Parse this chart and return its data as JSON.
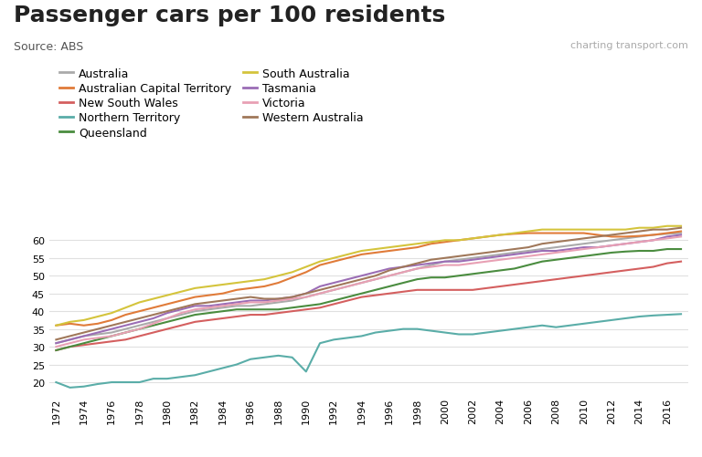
{
  "title": "Passenger cars per 100 residents",
  "source": "Source: ABS",
  "watermark": "charting transport.com",
  "years": [
    1972,
    1973,
    1974,
    1975,
    1976,
    1977,
    1978,
    1979,
    1980,
    1981,
    1982,
    1983,
    1984,
    1985,
    1986,
    1987,
    1988,
    1989,
    1990,
    1991,
    1992,
    1993,
    1994,
    1995,
    1996,
    1997,
    1998,
    1999,
    2000,
    2001,
    2002,
    2003,
    2004,
    2005,
    2006,
    2007,
    2008,
    2009,
    2010,
    2011,
    2012,
    2013,
    2014,
    2015,
    2016,
    2017
  ],
  "series": {
    "Australia": {
      "color": "#aaaaaa",
      "data": [
        31,
        32,
        33,
        33.5,
        34,
        35,
        36,
        37,
        38,
        39,
        40,
        40.5,
        41,
        41.5,
        41.5,
        42,
        42.5,
        43,
        44,
        45,
        46,
        47,
        48,
        49,
        50,
        51,
        52,
        53,
        54,
        54.5,
        55,
        55.5,
        56,
        56.5,
        57,
        57.5,
        58,
        58.5,
        59,
        59.5,
        60,
        60.5,
        61,
        61.5,
        61.8,
        62
      ]
    },
    "Australian Capital Territory": {
      "color": "#e07b39",
      "data": [
        36,
        36.5,
        36,
        36.5,
        37.5,
        39,
        40,
        41,
        42,
        43,
        44,
        44.5,
        45,
        46,
        46.5,
        47,
        48,
        49.5,
        51,
        53,
        54,
        55,
        56,
        56.5,
        57,
        57.5,
        58,
        59,
        59.5,
        60,
        60.5,
        61,
        61.5,
        61.8,
        62,
        62,
        62,
        62,
        62,
        61.5,
        61,
        61,
        61.2,
        61.5,
        62,
        62.5
      ]
    },
    "New South Wales": {
      "color": "#d45f5f",
      "data": [
        29,
        30,
        30.5,
        31,
        31.5,
        32,
        33,
        34,
        35,
        36,
        37,
        37.5,
        38,
        38.5,
        39,
        39,
        39.5,
        40,
        40.5,
        41,
        42,
        43,
        44,
        44.5,
        45,
        45.5,
        46,
        46,
        46,
        46,
        46,
        46.5,
        47,
        47.5,
        48,
        48.5,
        49,
        49.5,
        50,
        50.5,
        51,
        51.5,
        52,
        52.5,
        53.5,
        54
      ]
    },
    "Northern Territory": {
      "color": "#5aada8",
      "data": [
        20,
        18.5,
        18.8,
        19.5,
        20,
        20,
        20,
        21,
        21,
        21.5,
        22,
        23,
        24,
        25,
        26.5,
        27,
        27.5,
        27,
        23,
        31,
        32,
        32.5,
        33,
        34,
        34.5,
        35,
        35,
        34.5,
        34,
        33.5,
        33.5,
        34,
        34.5,
        35,
        35.5,
        36,
        35.5,
        36,
        36.5,
        37,
        37.5,
        38,
        38.5,
        38.8,
        39,
        39.2
      ]
    },
    "Queensland": {
      "color": "#4a8c3f",
      "data": [
        29,
        30,
        31,
        32,
        33,
        34,
        35,
        36,
        37,
        38,
        39,
        39.5,
        40,
        40.5,
        40.5,
        40.5,
        40.5,
        41,
        41.5,
        42,
        43,
        44,
        45,
        46,
        47,
        48,
        49,
        49.5,
        49.5,
        50,
        50.5,
        51,
        51.5,
        52,
        53,
        54,
        54.5,
        55,
        55.5,
        56,
        56.5,
        56.8,
        57,
        57,
        57.5,
        57.5
      ]
    },
    "South Australia": {
      "color": "#d4c43c",
      "data": [
        36,
        37,
        37.5,
        38.5,
        39.5,
        41,
        42.5,
        43.5,
        44.5,
        45.5,
        46.5,
        47,
        47.5,
        48,
        48.5,
        49,
        50,
        51,
        52.5,
        54,
        55,
        56,
        57,
        57.5,
        58,
        58.5,
        59,
        59.5,
        60,
        60,
        60.5,
        61,
        61.5,
        62,
        62.5,
        63,
        63,
        63,
        63,
        63,
        63,
        63,
        63.5,
        63.5,
        64,
        64
      ]
    },
    "Tasmania": {
      "color": "#9b6db5",
      "data": [
        31,
        32,
        33,
        34,
        35,
        36,
        37,
        38,
        39.5,
        40.5,
        41.5,
        41.5,
        42,
        42.5,
        43,
        43,
        43.5,
        44,
        45,
        47,
        48,
        49,
        50,
        51,
        52,
        52.5,
        53,
        53.5,
        54,
        54,
        54.5,
        55,
        55.5,
        56,
        56.5,
        57,
        57,
        57.5,
        58,
        58,
        58.5,
        59,
        59.5,
        60,
        61,
        61.5
      ]
    },
    "Victoria": {
      "color": "#e8a0b4",
      "data": [
        30,
        31,
        32,
        32.5,
        33,
        34,
        35,
        36.5,
        38,
        39.5,
        40.5,
        41,
        41.5,
        42,
        42.5,
        42.5,
        43,
        43.5,
        44,
        45,
        46,
        47,
        48,
        49,
        50,
        51,
        52,
        52.5,
        53,
        53,
        53.5,
        54,
        54.5,
        55,
        55.5,
        56,
        56.5,
        57,
        57.5,
        58,
        58.5,
        59,
        59.5,
        60,
        60.5,
        61
      ]
    },
    "Western Australia": {
      "color": "#a0785a",
      "data": [
        32,
        33,
        34,
        35,
        36,
        37,
        38,
        39,
        40,
        41,
        42,
        42.5,
        43,
        43.5,
        44,
        43.5,
        43.5,
        44,
        45,
        46,
        47,
        48,
        49,
        50,
        51.5,
        52.5,
        53.5,
        54.5,
        55,
        55.5,
        56,
        56.5,
        57,
        57.5,
        58,
        59,
        59.5,
        60,
        60.5,
        61,
        61.5,
        62,
        62.5,
        63,
        63,
        63.5
      ]
    }
  },
  "ylim": [
    17,
    66
  ],
  "yticks": [
    20,
    25,
    30,
    35,
    40,
    45,
    50,
    55,
    60
  ],
  "bg_color": "#ffffff",
  "grid_color": "#e0e0e0",
  "title_fontsize": 18,
  "source_fontsize": 9,
  "watermark_fontsize": 8,
  "legend_fontsize": 9,
  "axis_fontsize": 8,
  "legend_ncol": 2
}
